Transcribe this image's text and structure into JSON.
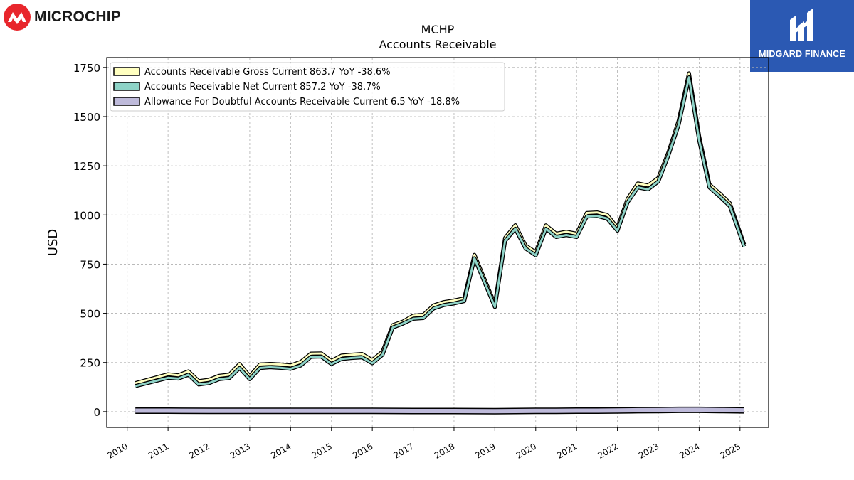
{
  "brand": {
    "left_logo": "MICROCHIP",
    "right_logo": "MIDGARD FINANCE"
  },
  "chart_data": {
    "type": "line",
    "title": "MCHP",
    "subtitle": "Accounts Receivable",
    "ylabel": "USD",
    "xlabel": "",
    "xlim": [
      2009.5,
      2025.7
    ],
    "ylim": [
      -80,
      1800
    ],
    "yticks": [
      0,
      250,
      500,
      750,
      1000,
      1250,
      1500,
      1750
    ],
    "xticks": [
      "2010",
      "2011",
      "2012",
      "2013",
      "2014",
      "2015",
      "2016",
      "2017",
      "2018",
      "2019",
      "2020",
      "2021",
      "2022",
      "2023",
      "2024",
      "2025"
    ],
    "grid": true,
    "legend_position": "top-left",
    "series": [
      {
        "name": "Accounts Receivable Gross Current",
        "legend_label": "Accounts Receivable Gross Current  863.7 YoY -38.6%",
        "color": "#ffffc0",
        "x": [
          2010.2,
          2011.0,
          2011.25,
          2011.5,
          2011.75,
          2012.0,
          2012.25,
          2012.5,
          2012.75,
          2013.0,
          2013.25,
          2013.5,
          2013.75,
          2014.0,
          2014.25,
          2014.5,
          2014.75,
          2015.0,
          2015.25,
          2015.5,
          2015.75,
          2016.0,
          2016.25,
          2016.5,
          2016.75,
          2017.0,
          2017.25,
          2017.5,
          2017.75,
          2018.0,
          2018.25,
          2018.5,
          2019.0,
          2019.25,
          2019.5,
          2019.75,
          2020.0,
          2020.25,
          2020.5,
          2020.75,
          2021.0,
          2021.25,
          2021.5,
          2021.75,
          2022.0,
          2022.25,
          2022.5,
          2022.75,
          2023.0,
          2023.25,
          2023.5,
          2023.75,
          2024.0,
          2024.25,
          2024.5,
          2024.75,
          2025.1
        ],
        "y": [
          145,
          190,
          185,
          205,
          155,
          162,
          182,
          188,
          242,
          180,
          240,
          243,
          240,
          235,
          253,
          295,
          296,
          258,
          285,
          290,
          293,
          262,
          305,
          440,
          458,
          488,
          492,
          540,
          557,
          565,
          576,
          797,
          545,
          883,
          948,
          845,
          810,
          947,
          905,
          915,
          905,
          1010,
          1013,
          1000,
          935,
          1082,
          1160,
          1150,
          1188,
          1320,
          1480,
          1720,
          1400,
          1155,
          1110,
          1060,
          850
        ]
      },
      {
        "name": "Accounts Receivable Net Current",
        "legend_label": "Accounts Receivable Net Current  857.2 YoY -38.7%",
        "color": "#8dd3c7",
        "x": [
          2010.2,
          2011.0,
          2011.25,
          2011.5,
          2011.75,
          2012.0,
          2012.25,
          2012.5,
          2012.75,
          2013.0,
          2013.25,
          2013.5,
          2013.75,
          2014.0,
          2014.25,
          2014.5,
          2014.75,
          2015.0,
          2015.25,
          2015.5,
          2015.75,
          2016.0,
          2016.25,
          2016.5,
          2016.75,
          2017.0,
          2017.25,
          2017.5,
          2017.75,
          2018.0,
          2018.25,
          2018.5,
          2019.0,
          2019.25,
          2019.5,
          2019.75,
          2020.0,
          2020.25,
          2020.5,
          2020.75,
          2021.0,
          2021.25,
          2021.5,
          2021.75,
          2022.0,
          2022.25,
          2022.5,
          2022.75,
          2023.0,
          2023.25,
          2023.5,
          2023.75,
          2024.0,
          2024.25,
          2024.5,
          2024.75,
          2025.1
        ],
        "y": [
          130,
          172,
          168,
          188,
          138,
          145,
          165,
          171,
          222,
          165,
          222,
          226,
          223,
          218,
          235,
          279,
          280,
          242,
          268,
          273,
          276,
          246,
          289,
          428,
          448,
          472,
          476,
          525,
          542,
          550,
          562,
          780,
          532,
          868,
          930,
          830,
          795,
          930,
          888,
          898,
          888,
          992,
          995,
          982,
          920,
          1065,
          1140,
          1130,
          1170,
          1305,
          1460,
          1700,
          1380,
          1140,
          1095,
          1045,
          840
        ]
      },
      {
        "name": "Allowance For Doubtful Accounts Receivable Current",
        "legend_label": "Allowance For Doubtful Accounts Receivable Current  6.5 YoY -18.8%",
        "color": "#bebada",
        "x": [
          2010.2,
          2011.0,
          2012.0,
          2013.0,
          2014.0,
          2015.0,
          2016.0,
          2017.0,
          2018.0,
          2019.0,
          2019.5,
          2020.0,
          2020.5,
          2021.0,
          2021.5,
          2022.0,
          2022.5,
          2023.0,
          2023.5,
          2024.0,
          2024.5,
          2025.1
        ],
        "y": [
          5,
          5,
          4,
          4,
          4,
          4,
          4,
          3,
          3,
          2,
          3,
          4,
          4,
          5,
          5,
          6,
          7,
          8,
          9,
          9,
          8,
          6.5
        ]
      }
    ]
  }
}
